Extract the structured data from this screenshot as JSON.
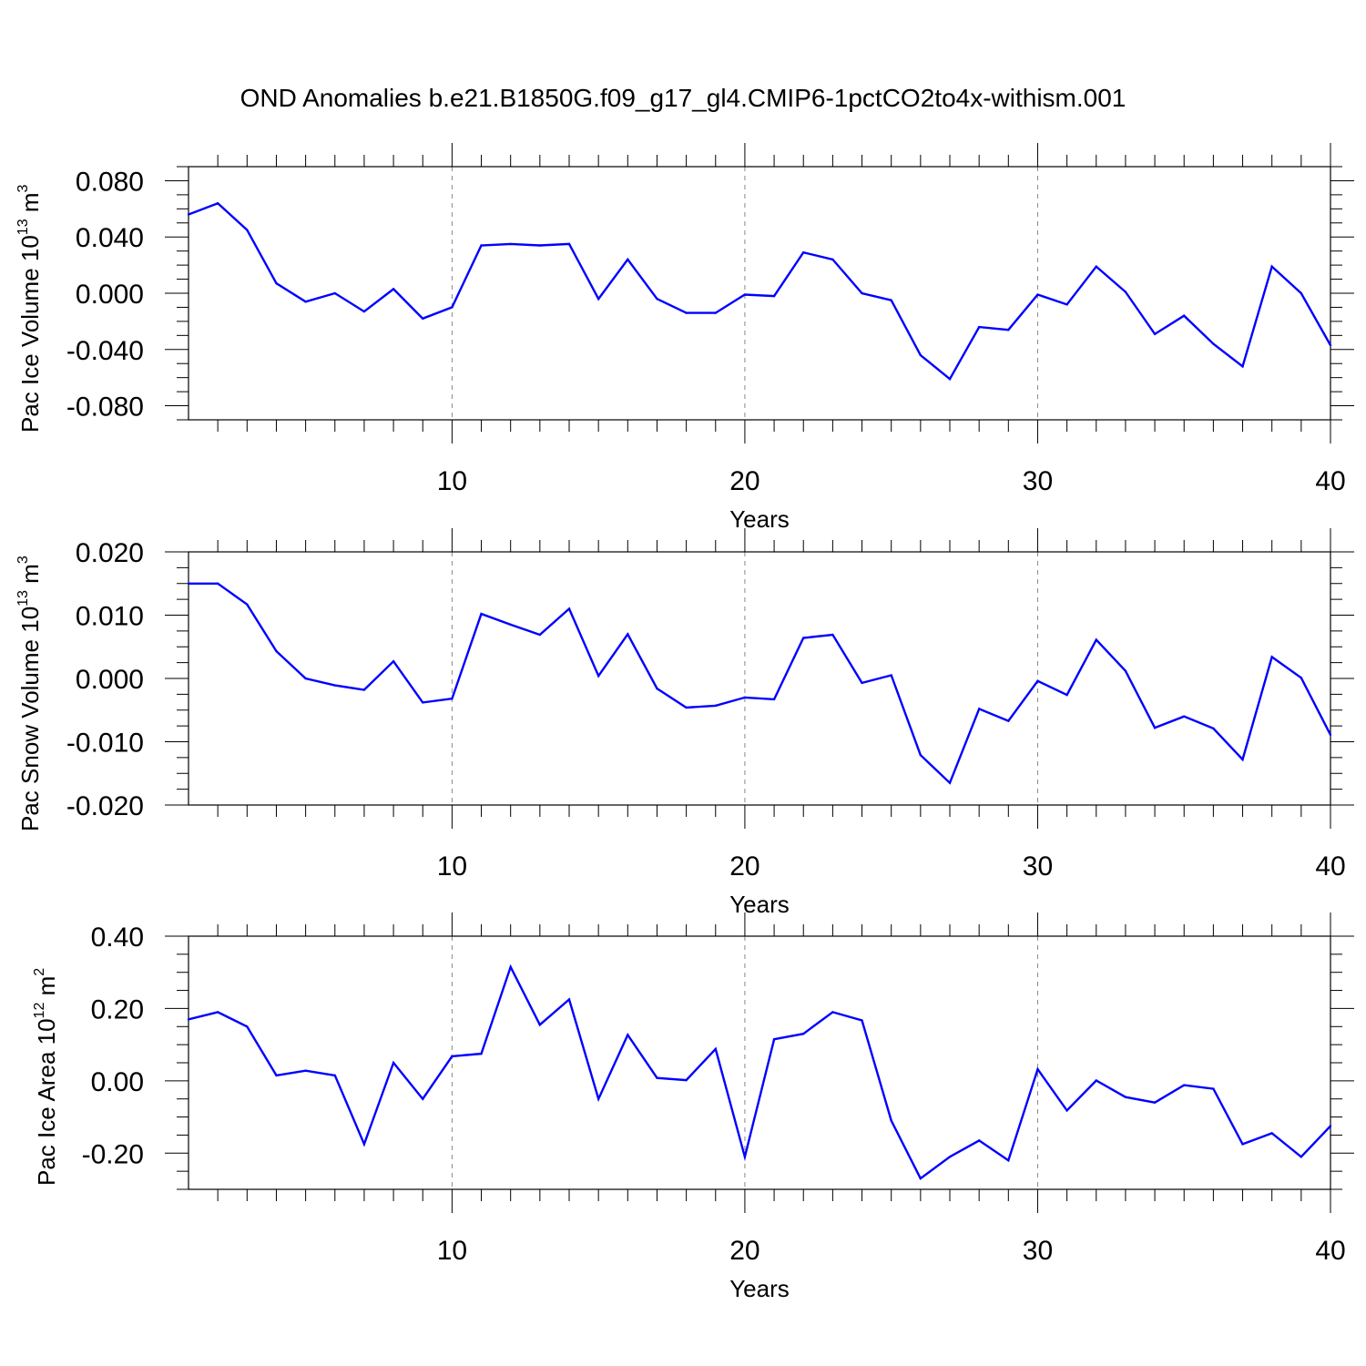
{
  "page_title": "OND Anomalies b.e21.B1850G.f09_g17_gl4.CMIP6-1pctCO2to4x-withism.001",
  "chart_data": [
    {
      "type": "line",
      "xlabel": "Years",
      "ylabel_main": "Pac Ice Volume 10",
      "ylabel_exp": "13",
      "ylabel_unit": " m",
      "ylabel_unit_exp": "3",
      "xlim": [
        1,
        40
      ],
      "ylim": [
        -0.09,
        0.09
      ],
      "xticks": [
        10,
        20,
        30,
        40
      ],
      "yticks": [
        -0.08,
        -0.04,
        0.0,
        0.04,
        0.08
      ],
      "yticklabels": [
        "-0.080",
        "-0.040",
        "0.000",
        "0.040",
        "0.080"
      ],
      "grid_x": [
        10,
        20,
        30
      ],
      "color": "#0000ff",
      "x": [
        1,
        2,
        3,
        4,
        5,
        6,
        7,
        8,
        9,
        10,
        11,
        12,
        13,
        14,
        15,
        16,
        17,
        18,
        19,
        20,
        21,
        22,
        23,
        24,
        25,
        26,
        27,
        28,
        29,
        30,
        31,
        32,
        33,
        34,
        35,
        36,
        37,
        38,
        39,
        40
      ],
      "values": [
        0.056,
        0.064,
        0.045,
        0.007,
        -0.006,
        0.0,
        -0.013,
        0.003,
        -0.018,
        -0.01,
        0.034,
        0.035,
        0.034,
        0.035,
        -0.004,
        0.024,
        -0.004,
        -0.014,
        -0.014,
        -0.001,
        -0.002,
        0.029,
        0.024,
        0.0,
        -0.005,
        -0.044,
        -0.061,
        -0.024,
        -0.026,
        -0.001,
        -0.008,
        0.019,
        0.001,
        -0.029,
        -0.016,
        -0.036,
        -0.052,
        0.019,
        0.0,
        -0.037
      ]
    },
    {
      "type": "line",
      "xlabel": "Years",
      "ylabel_main": "Pac Snow Volume 10",
      "ylabel_exp": "13",
      "ylabel_unit": " m",
      "ylabel_unit_exp": "3",
      "xlim": [
        1,
        40
      ],
      "ylim": [
        -0.02,
        0.02
      ],
      "xticks": [
        10,
        20,
        30,
        40
      ],
      "yticks": [
        -0.02,
        -0.01,
        0.0,
        0.01,
        0.02
      ],
      "yticklabels": [
        "-0.020",
        "-0.010",
        "0.000",
        "0.010",
        "0.020"
      ],
      "grid_x": [
        10,
        20,
        30
      ],
      "color": "#0000ff",
      "x": [
        1,
        2,
        3,
        4,
        5,
        6,
        7,
        8,
        9,
        10,
        11,
        12,
        13,
        14,
        15,
        16,
        17,
        18,
        19,
        20,
        21,
        22,
        23,
        24,
        25,
        26,
        27,
        28,
        29,
        30,
        31,
        32,
        33,
        34,
        35,
        36,
        37,
        38,
        39,
        40
      ],
      "values": [
        0.015,
        0.015,
        0.0117,
        0.0043,
        0.0,
        -0.0011,
        -0.0018,
        0.0027,
        -0.0038,
        -0.0032,
        0.0102,
        0.0085,
        0.0069,
        0.011,
        0.0004,
        0.007,
        -0.0016,
        -0.0046,
        -0.0043,
        -0.003,
        -0.0033,
        0.0064,
        0.0069,
        -0.0007,
        0.0005,
        -0.0121,
        -0.0165,
        -0.0048,
        -0.0067,
        -0.0004,
        -0.0026,
        0.0061,
        0.0012,
        -0.0078,
        -0.006,
        -0.0079,
        -0.0128,
        0.0034,
        0.0001,
        -0.0089
      ]
    },
    {
      "type": "line",
      "xlabel": "Years",
      "ylabel_main": "Pac Ice Area 10",
      "ylabel_exp": "12",
      "ylabel_unit": " m",
      "ylabel_unit_exp": "2",
      "xlim": [
        1,
        40
      ],
      "ylim": [
        -0.3,
        0.4
      ],
      "xticks": [
        10,
        20,
        30,
        40
      ],
      "yticks": [
        -0.2,
        0.0,
        0.2,
        0.4
      ],
      "yticklabels": [
        "-0.20",
        "0.00",
        "0.20",
        "0.40"
      ],
      "grid_x": [
        10,
        20,
        30
      ],
      "color": "#0000ff",
      "x": [
        1,
        2,
        3,
        4,
        5,
        6,
        7,
        8,
        9,
        10,
        11,
        12,
        13,
        14,
        15,
        16,
        17,
        18,
        19,
        20,
        21,
        22,
        23,
        24,
        25,
        26,
        27,
        28,
        29,
        30,
        31,
        32,
        33,
        34,
        35,
        36,
        37,
        38,
        39,
        40
      ],
      "values": [
        0.17,
        0.19,
        0.15,
        0.015,
        0.028,
        0.015,
        -0.175,
        0.05,
        -0.05,
        0.068,
        0.075,
        0.315,
        0.155,
        0.225,
        -0.05,
        0.127,
        0.008,
        0.002,
        0.088,
        -0.21,
        0.115,
        0.13,
        0.19,
        0.167,
        -0.11,
        -0.27,
        -0.21,
        -0.165,
        -0.22,
        0.032,
        -0.082,
        0.001,
        -0.045,
        -0.06,
        -0.012,
        -0.022,
        -0.175,
        -0.145,
        -0.21,
        -0.125
      ]
    }
  ]
}
